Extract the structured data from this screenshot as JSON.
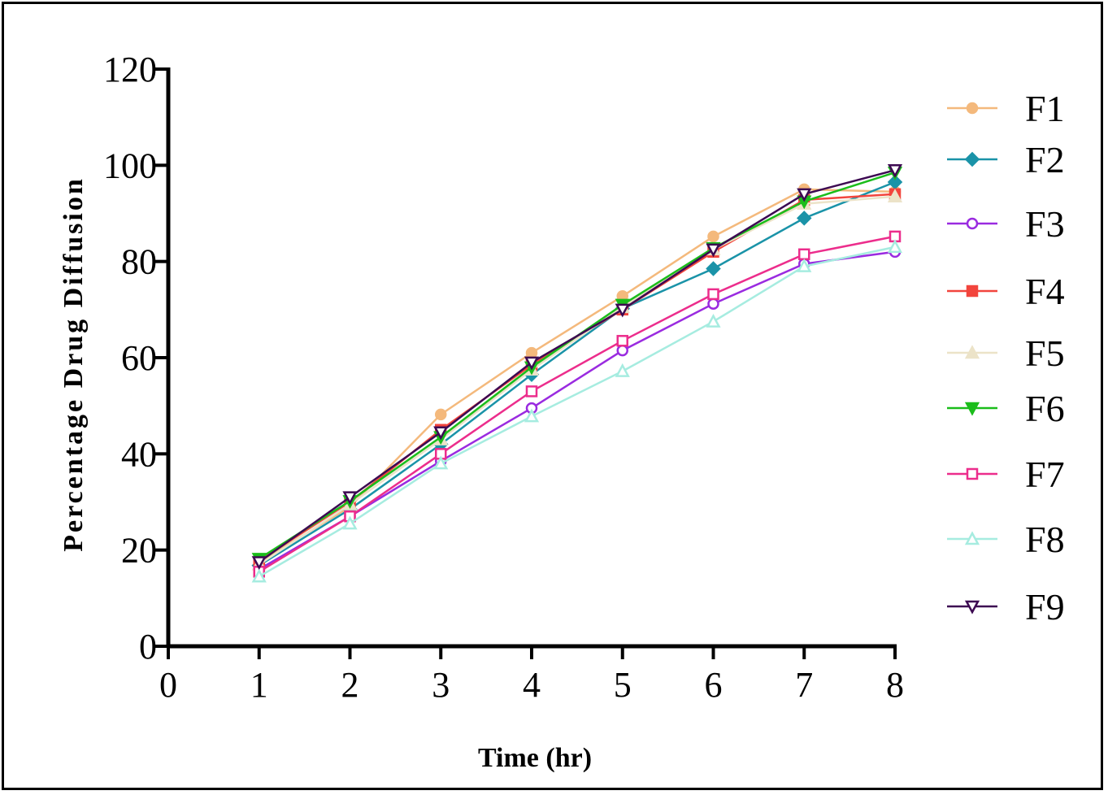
{
  "chart_data": {
    "type": "line",
    "title": "",
    "xlabel": "Time (hr)",
    "ylabel": "Percentage Drug Diffusion",
    "xlim": [
      0,
      8
    ],
    "ylim": [
      0,
      120
    ],
    "xticks": [
      "0",
      "1",
      "2",
      "3",
      "4",
      "5",
      "6",
      "7",
      "8"
    ],
    "yticks": [
      "0",
      "20",
      "40",
      "60",
      "80",
      "100",
      "120"
    ],
    "grid": false,
    "legend_position": "right",
    "x": [
      1,
      2,
      3,
      4,
      5,
      6,
      7,
      8
    ],
    "series": [
      {
        "name": "F1",
        "color": "#f4b97c",
        "marker": "circle-filled",
        "values": [
          17.5,
          29.0,
          48.2,
          61.0,
          72.8,
          85.2,
          95.0,
          94.5
        ]
      },
      {
        "name": "F2",
        "color": "#1a93a8",
        "marker": "diamond-filled",
        "values": [
          16.8,
          28.5,
          42.0,
          56.5,
          70.2,
          78.5,
          89.0,
          96.5
        ]
      },
      {
        "name": "F3",
        "color": "#9a2be0",
        "marker": "circle-open",
        "values": [
          16.0,
          27.0,
          38.5,
          49.5,
          61.5,
          71.2,
          79.5,
          82.0
        ]
      },
      {
        "name": "F4",
        "color": "#f2453d",
        "marker": "square-filled",
        "values": [
          17.8,
          30.0,
          45.0,
          58.5,
          70.0,
          82.0,
          92.8,
          94.0
        ]
      },
      {
        "name": "F5",
        "color": "#ece3c8",
        "marker": "triangle-up-filled",
        "values": [
          17.0,
          29.5,
          43.0,
          57.5,
          70.5,
          82.5,
          92.0,
          93.5
        ]
      },
      {
        "name": "F6",
        "color": "#1bbd1b",
        "marker": "triangle-down-filled",
        "values": [
          18.2,
          30.2,
          43.5,
          58.0,
          71.0,
          82.8,
          92.5,
          98.5
        ]
      },
      {
        "name": "F7",
        "color": "#ec2d8c",
        "marker": "square-open",
        "values": [
          15.5,
          27.0,
          40.0,
          53.0,
          63.5,
          73.2,
          81.5,
          85.2
        ]
      },
      {
        "name": "F8",
        "color": "#a6ece0",
        "marker": "triangle-up-open",
        "values": [
          14.5,
          25.5,
          38.0,
          47.8,
          57.2,
          67.5,
          79.0,
          83.0
        ]
      },
      {
        "name": "F9",
        "color": "#3d0a52",
        "marker": "triangle-down-open",
        "values": [
          17.5,
          31.0,
          44.5,
          59.0,
          70.0,
          82.5,
          94.0,
          99.0
        ]
      }
    ]
  }
}
